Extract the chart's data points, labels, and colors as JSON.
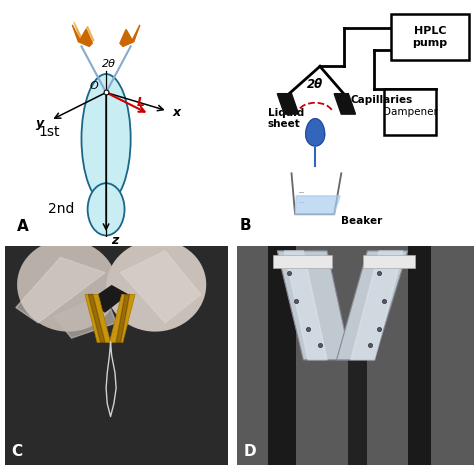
{
  "figure_width": 4.74,
  "figure_height": 4.74,
  "dpi": 100,
  "bg_color": "#ffffff",
  "panel_label_fontsize": 11,
  "panel_label_weight": "bold",
  "panel_A": {
    "ellipse1_color": "#c8eef4",
    "ellipse2_color": "#c8eef4",
    "ellipse_edge": "#1a6688",
    "text_1st": "1st",
    "text_2nd": "2nd",
    "text_x": "x",
    "text_y": "y",
    "text_z": "z",
    "text_O": "O",
    "text_L": "L",
    "text_2theta": "2θ",
    "arrow_color": "black",
    "L_color": "#cc0000",
    "theta_color": "#cc0000",
    "beam_color": "#cc6600",
    "beam_line_color": "#88aacc"
  },
  "panel_B": {
    "line_color": "black",
    "cap_color": "#111111",
    "liquid_color": "#3366bb",
    "liquid_dark": "#224499",
    "beaker_water_color": "#aaccee",
    "beaker_color": "#666666",
    "text_2theta": "2θ",
    "text_capillaries": "Capillaries",
    "text_liquid": "Liquid\nsheet",
    "text_beaker": "Beaker",
    "text_dampener": "Dampener",
    "text_hplc": "HPLC\npump",
    "theta_color": "#cc0000",
    "pipe_lw": 2.0
  }
}
